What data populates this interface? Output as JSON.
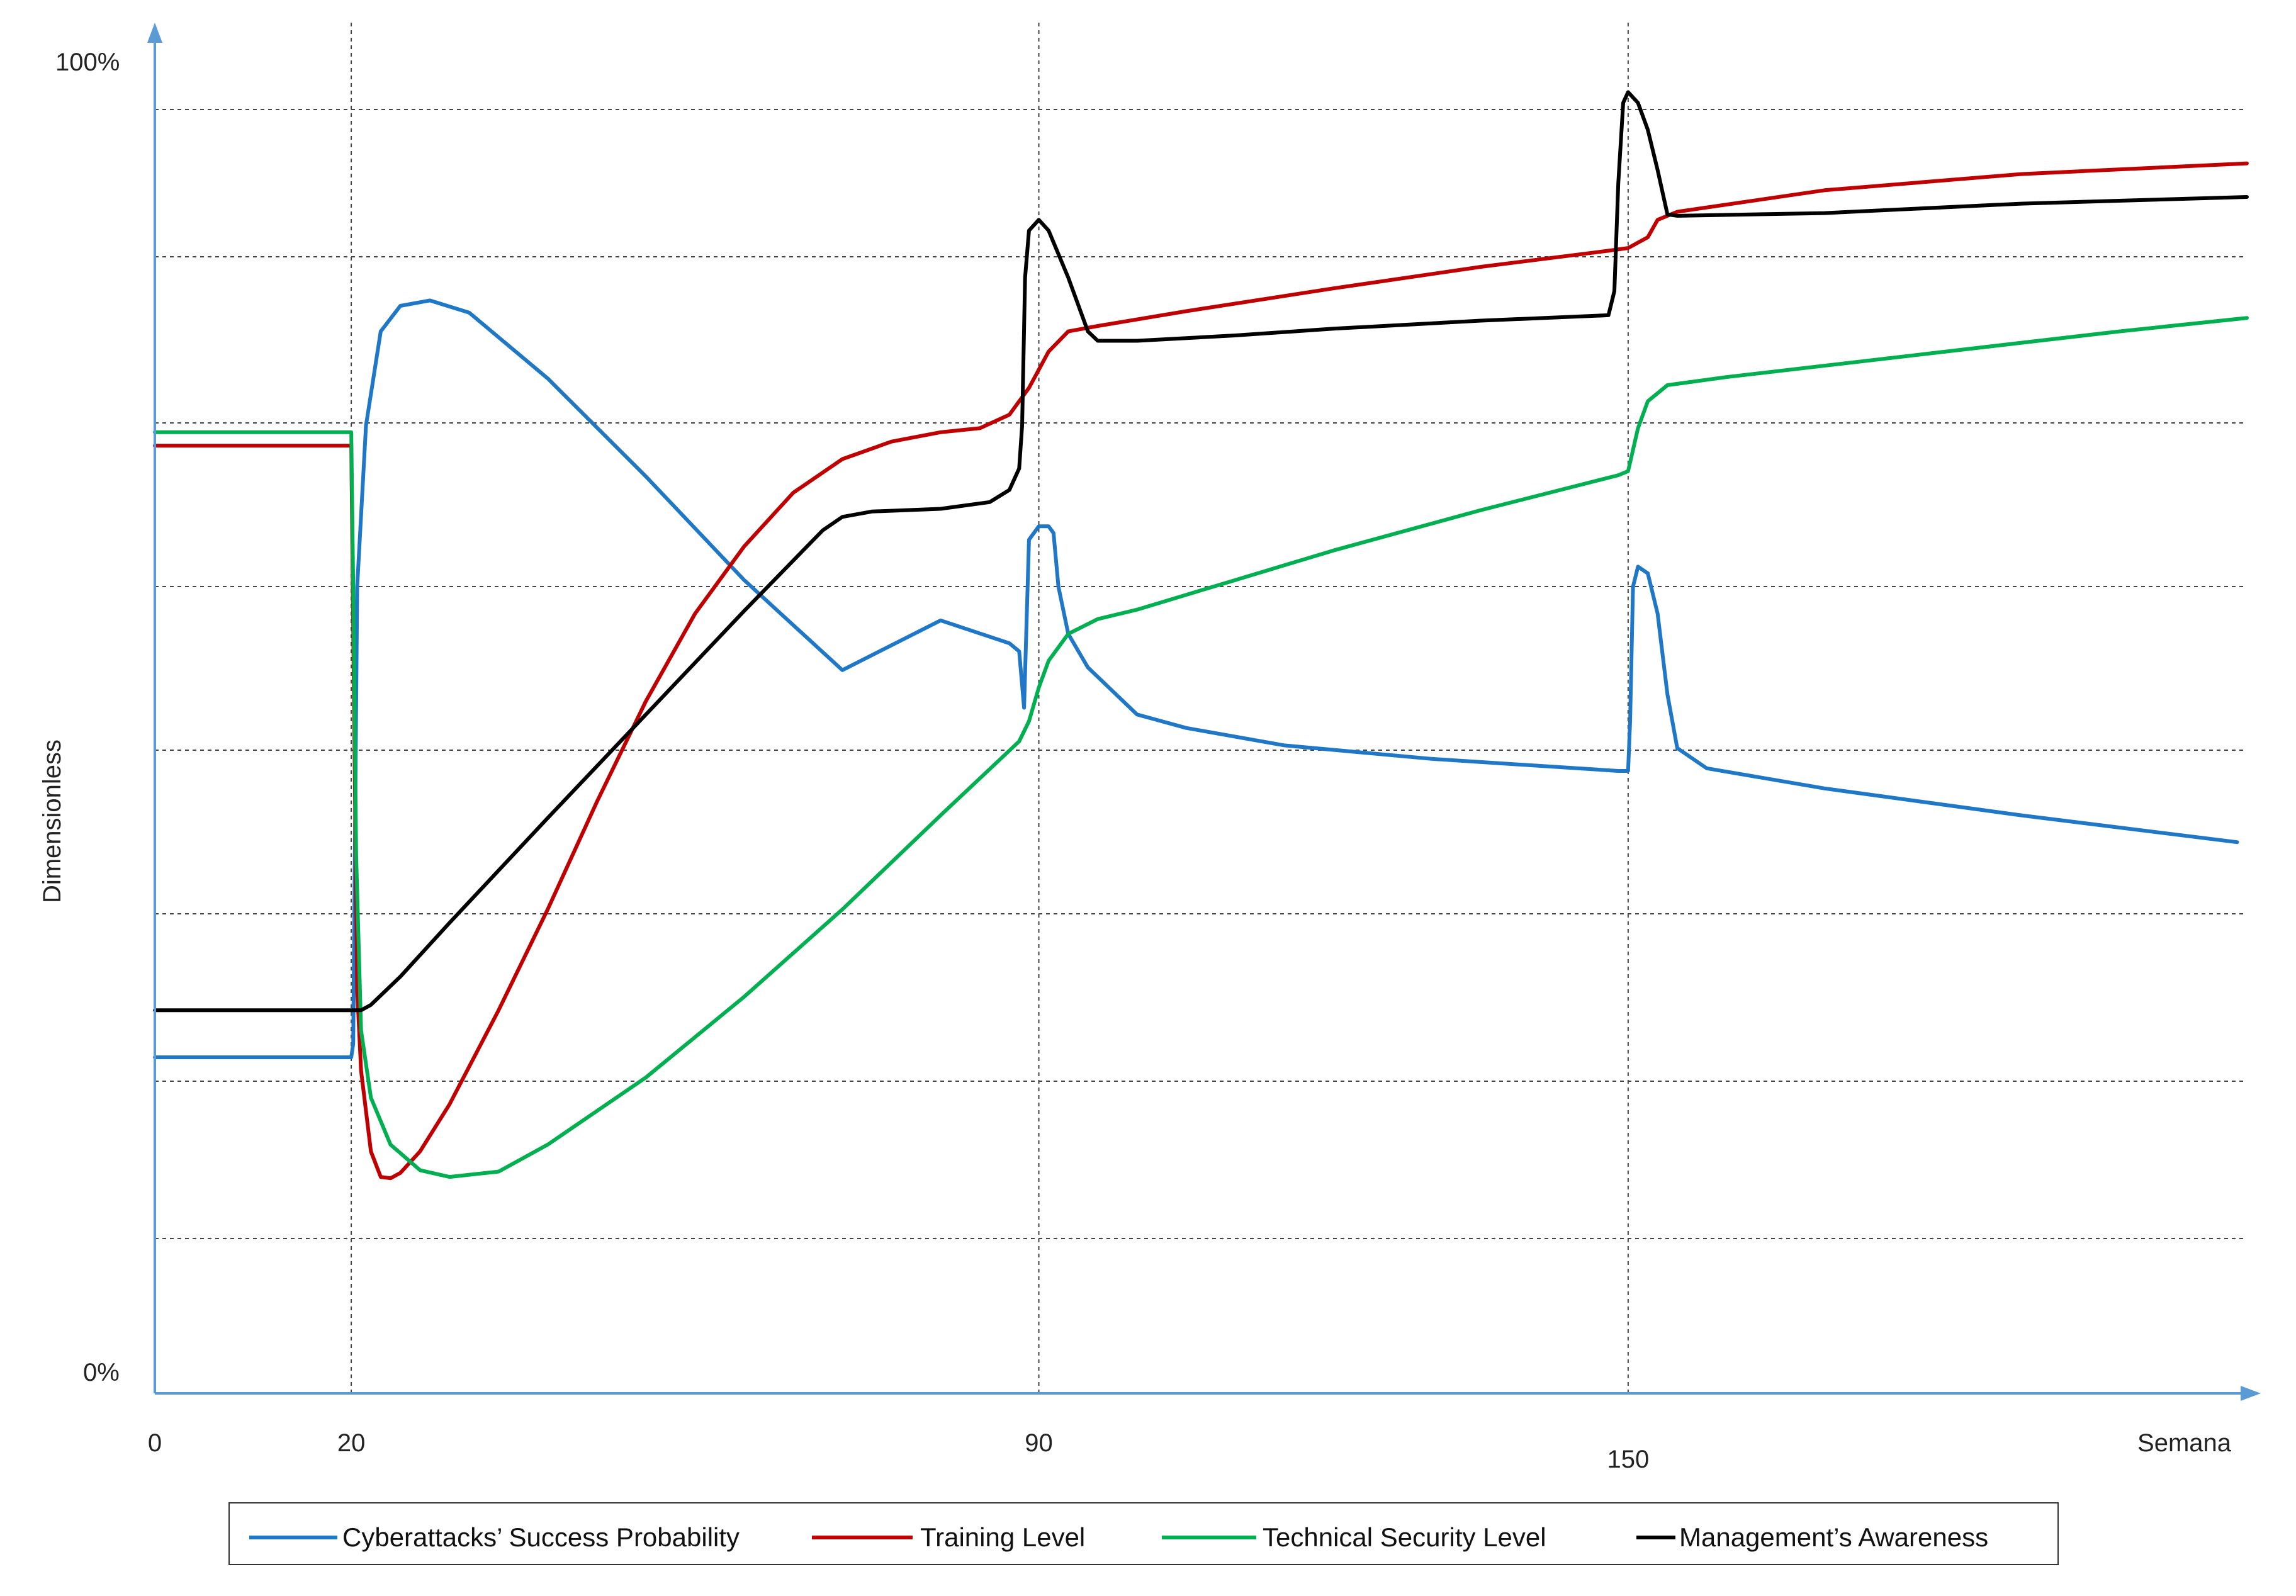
{
  "chart_data": {
    "type": "line",
    "title": "",
    "xlabel": "Semana",
    "ylabel": "Dimensionless",
    "y_tick_labels": {
      "top": "100%",
      "bottom": "0%"
    },
    "x_ticks": [
      0,
      20,
      90,
      150
    ],
    "xlim": [
      0,
      213
    ],
    "ylim": [
      0,
      100
    ],
    "grid": {
      "horizontal": true,
      "vertical_at": [
        20,
        90,
        150
      ]
    },
    "legend_position": "bottom",
    "colors": {
      "axis": "#5b9bd5",
      "grid": "#444444",
      "cyber": "#1f77c8",
      "training": "#c00000",
      "technical": "#00b050",
      "management": "#000000"
    },
    "series": [
      {
        "key": "cyber",
        "name": "Cyberattacks’ Success Probability",
        "points": [
          [
            0,
            25
          ],
          [
            20,
            25
          ],
          [
            20.2,
            26
          ],
          [
            20.6,
            60
          ],
          [
            21.5,
            72
          ],
          [
            23,
            79
          ],
          [
            25,
            80.9
          ],
          [
            28,
            81.3
          ],
          [
            32,
            80.4
          ],
          [
            40,
            75.5
          ],
          [
            50,
            68.2
          ],
          [
            60,
            60.5
          ],
          [
            70,
            53.8
          ],
          [
            80,
            57.5
          ],
          [
            87,
            55.8
          ],
          [
            88,
            55.2
          ],
          [
            88.5,
            51
          ],
          [
            89,
            63.5
          ],
          [
            90,
            64.5
          ],
          [
            91,
            64.5
          ],
          [
            91.5,
            64
          ],
          [
            92,
            60
          ],
          [
            93,
            56.5
          ],
          [
            95,
            54
          ],
          [
            100,
            50.5
          ],
          [
            105,
            49.5
          ],
          [
            115,
            48.2
          ],
          [
            130,
            47.2
          ],
          [
            149,
            46.3
          ],
          [
            150,
            46.3
          ],
          [
            150.2,
            50
          ],
          [
            150.5,
            60
          ],
          [
            151,
            61.5
          ],
          [
            152,
            61
          ],
          [
            153,
            58
          ],
          [
            154,
            52
          ],
          [
            155,
            48
          ],
          [
            158,
            46.5
          ],
          [
            170,
            45
          ],
          [
            190,
            43
          ],
          [
            212,
            41
          ]
        ]
      },
      {
        "key": "training",
        "name": "Training Level",
        "points": [
          [
            0,
            70.5
          ],
          [
            20,
            70.5
          ],
          [
            20.3,
            50
          ],
          [
            20.6,
            30
          ],
          [
            21,
            24
          ],
          [
            22,
            18
          ],
          [
            23,
            16.1
          ],
          [
            24,
            16
          ],
          [
            25,
            16.4
          ],
          [
            27,
            18
          ],
          [
            30,
            21.5
          ],
          [
            35,
            28.5
          ],
          [
            40,
            36
          ],
          [
            45,
            44
          ],
          [
            50,
            51.5
          ],
          [
            55,
            58
          ],
          [
            60,
            63
          ],
          [
            65,
            67
          ],
          [
            70,
            69.5
          ],
          [
            75,
            70.8
          ],
          [
            80,
            71.5
          ],
          [
            84,
            71.8
          ],
          [
            87,
            72.8
          ],
          [
            89,
            74.8
          ],
          [
            91,
            77.5
          ],
          [
            93,
            79
          ],
          [
            96,
            79.4
          ],
          [
            105,
            80.5
          ],
          [
            120,
            82.2
          ],
          [
            135,
            83.8
          ],
          [
            148,
            85
          ],
          [
            150,
            85.2
          ],
          [
            152,
            86
          ],
          [
            153,
            87.3
          ],
          [
            155,
            87.9
          ],
          [
            170,
            89.5
          ],
          [
            190,
            90.7
          ],
          [
            213,
            91.5
          ]
        ]
      },
      {
        "key": "technical",
        "name": "Technical Security Level",
        "points": [
          [
            0,
            71.5
          ],
          [
            20,
            71.5
          ],
          [
            20.2,
            60
          ],
          [
            20.5,
            40
          ],
          [
            21,
            27
          ],
          [
            22,
            22
          ],
          [
            24,
            18.5
          ],
          [
            27,
            16.6
          ],
          [
            30,
            16.1
          ],
          [
            35,
            16.5
          ],
          [
            40,
            18.5
          ],
          [
            50,
            23.5
          ],
          [
            60,
            29.5
          ],
          [
            70,
            36
          ],
          [
            80,
            43
          ],
          [
            88,
            48.5
          ],
          [
            89,
            50
          ],
          [
            90,
            52.5
          ],
          [
            91,
            54.5
          ],
          [
            93,
            56.5
          ],
          [
            96,
            57.6
          ],
          [
            100,
            58.3
          ],
          [
            110,
            60.5
          ],
          [
            120,
            62.7
          ],
          [
            135,
            65.7
          ],
          [
            149,
            68.3
          ],
          [
            150,
            68.6
          ],
          [
            151,
            71.8
          ],
          [
            152,
            73.8
          ],
          [
            154,
            75
          ],
          [
            160,
            75.6
          ],
          [
            180,
            77.3
          ],
          [
            200,
            79
          ],
          [
            213,
            80
          ]
        ]
      },
      {
        "key": "management",
        "name": "Management’s Awareness",
        "points": [
          [
            0,
            28.5
          ],
          [
            20,
            28.5
          ],
          [
            21,
            28.5
          ],
          [
            22,
            28.9
          ],
          [
            25,
            31
          ],
          [
            30,
            35
          ],
          [
            40,
            42.8
          ],
          [
            50,
            50.5
          ],
          [
            60,
            58.2
          ],
          [
            68,
            64.2
          ],
          [
            70,
            65.2
          ],
          [
            73,
            65.6
          ],
          [
            80,
            65.8
          ],
          [
            85,
            66.3
          ],
          [
            87,
            67.2
          ],
          [
            88,
            68.8
          ],
          [
            88.3,
            72
          ],
          [
            88.6,
            83
          ],
          [
            89,
            86.5
          ],
          [
            90,
            87.3
          ],
          [
            91,
            86.5
          ],
          [
            93,
            83
          ],
          [
            95,
            79
          ],
          [
            96,
            78.3
          ],
          [
            100,
            78.3
          ],
          [
            110,
            78.7
          ],
          [
            120,
            79.2
          ],
          [
            135,
            79.8
          ],
          [
            148,
            80.2
          ],
          [
            148.6,
            82
          ],
          [
            149,
            90
          ],
          [
            149.5,
            96
          ],
          [
            150,
            96.8
          ],
          [
            151,
            96
          ],
          [
            152,
            94
          ],
          [
            153,
            91
          ],
          [
            154,
            87.7
          ],
          [
            155,
            87.6
          ],
          [
            170,
            87.8
          ],
          [
            190,
            88.5
          ],
          [
            213,
            89
          ]
        ]
      }
    ]
  }
}
